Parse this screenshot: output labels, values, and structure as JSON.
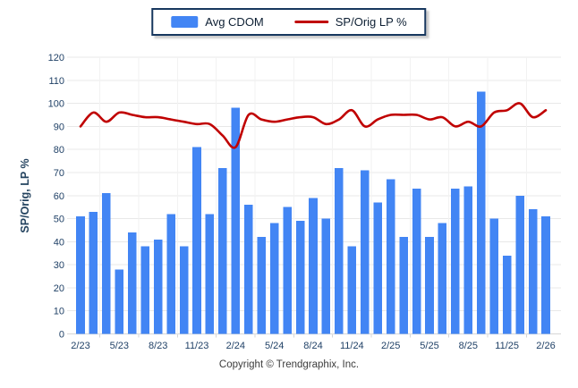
{
  "legend": {
    "bar_label": "Avg CDOM",
    "line_label": "SP/Orig LP %"
  },
  "axes": {
    "y_title": "SP/Orig, LP %"
  },
  "footer": {
    "copyright": "Copyright © Trendgraphix, Inc."
  },
  "colors": {
    "bar": "#4285f4",
    "line": "#c00000",
    "grid": "#e8e8e8",
    "grid_zero": "#d6d6d6",
    "vgrid": "#f2f2f2",
    "axis_text": "#1f4066",
    "legend_border": "#17375e",
    "title_text": "#24435f"
  },
  "chart_data": {
    "type": "bar+line combo",
    "n_points": 37,
    "x_tick_labels": [
      "2/23",
      "5/23",
      "8/23",
      "11/23",
      "2/24",
      "5/24",
      "8/24",
      "11/24",
      "2/25",
      "5/25",
      "8/25",
      "11/25",
      "2/26"
    ],
    "x_tick_every": 3,
    "ylim": [
      0,
      120
    ],
    "y_tick_step": 10,
    "grid": true,
    "legend_position": "top-center",
    "ylabel": "SP/Orig, LP %",
    "series": [
      {
        "name": "Avg CDOM",
        "type": "bar",
        "color": "#4285f4",
        "values": [
          51,
          53,
          61,
          28,
          44,
          38,
          41,
          52,
          38,
          81,
          52,
          72,
          98,
          56,
          42,
          48,
          55,
          49,
          59,
          50,
          72,
          38,
          71,
          57,
          67,
          42,
          63,
          42,
          48,
          63,
          64,
          105,
          50,
          34,
          60,
          54,
          51
        ]
      },
      {
        "name": "SP/Orig LP %",
        "type": "line",
        "color": "#c00000",
        "values": [
          90,
          96,
          92,
          96,
          95,
          94,
          94,
          93,
          92,
          91,
          91,
          86,
          81,
          95,
          93,
          92,
          93,
          94,
          94,
          91,
          93,
          97,
          90,
          93,
          95,
          95,
          95,
          93,
          94,
          90,
          92,
          90,
          96,
          97,
          100,
          94,
          97
        ]
      }
    ]
  }
}
